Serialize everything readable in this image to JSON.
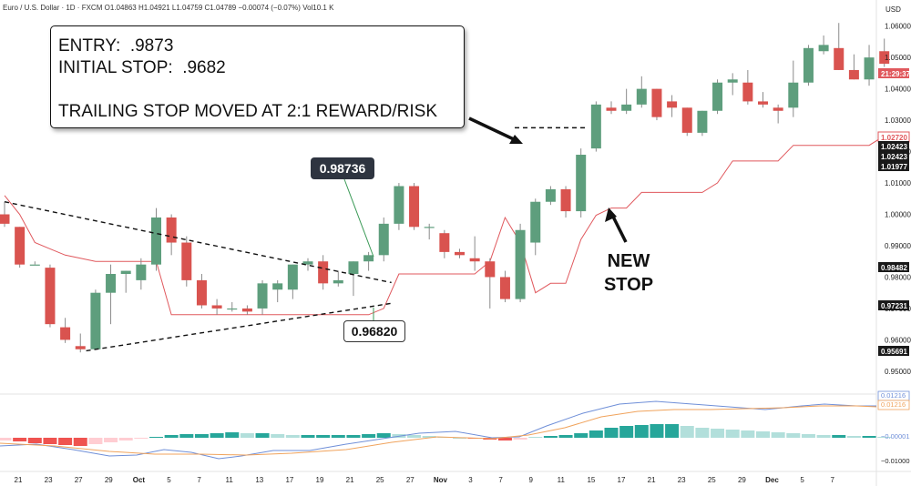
{
  "legend": {
    "symbol": "Euro / U.S. Dollar · 1D · FXCM",
    "o": "O1.04863",
    "h": "H1.04921",
    "l": "L1.04759",
    "c": "C1.04789",
    "chg": "−0.00074 (−0.07%)",
    "vol": "Vol10.1 K"
  },
  "currency": "USD",
  "annotation": {
    "entry": "ENTRY:  .9873",
    "stop": "INITIAL STOP:  .9682",
    "trailing": "TRAILING STOP MOVED AT 2:1 REWARD/RISK"
  },
  "label_high": "0.98736",
  "label_low": "0.96820",
  "new_stop": [
    "NEW",
    "STOP"
  ],
  "colors": {
    "up": "#5e9e7d",
    "down": "#d9534f",
    "stop_line": "#e0585d",
    "macd": "#6f8fd8",
    "signal": "#f0a35c"
  },
  "chart_data": {
    "type": "candlestick",
    "ylim": [
      0.943,
      1.066
    ],
    "y_ticks": [
      0.95,
      0.96,
      0.97,
      0.98,
      0.99,
      1.0,
      1.01,
      1.02,
      1.03,
      1.04,
      1.05,
      1.06
    ],
    "y_tick_labels": [
      "0.95000",
      "0.96000",
      "0.97000",
      "0.98000",
      "0.99000",
      "1.00000",
      "1.01000",
      "1.02000",
      "1.03000",
      "1.04000",
      "1.05000",
      "1.06000"
    ],
    "x_tick_labels": [
      "21",
      "23",
      "27",
      "29",
      "Oct",
      "5",
      "7",
      "11",
      "13",
      "17",
      "19",
      "21",
      "25",
      "27",
      "Nov",
      "3",
      "7",
      "9",
      "11",
      "15",
      "17",
      "21",
      "23",
      "25",
      "29",
      "Dec",
      "5",
      "7"
    ],
    "candles": [
      [
        1.0,
        1.004,
        0.996,
        0.997
      ],
      [
        0.996,
        0.996,
        0.983,
        0.984
      ],
      [
        0.984,
        0.985,
        0.984,
        0.984
      ],
      [
        0.983,
        0.984,
        0.964,
        0.965
      ],
      [
        0.964,
        0.967,
        0.959,
        0.96
      ],
      [
        0.958,
        0.962,
        0.956,
        0.957
      ],
      [
        0.957,
        0.976,
        0.957,
        0.975
      ],
      [
        0.975,
        0.984,
        0.965,
        0.981
      ],
      [
        0.981,
        0.982,
        0.975,
        0.982
      ],
      [
        0.979,
        0.986,
        0.976,
        0.984
      ],
      [
        0.984,
        1.002,
        0.982,
        0.999
      ],
      [
        0.999,
        1.0,
        0.987,
        0.991
      ],
      [
        0.991,
        0.993,
        0.977,
        0.979
      ],
      [
        0.979,
        0.981,
        0.97,
        0.971
      ],
      [
        0.971,
        0.973,
        0.968,
        0.97
      ],
      [
        0.97,
        0.972,
        0.969,
        0.97
      ],
      [
        0.97,
        0.971,
        0.968,
        0.969
      ],
      [
        0.97,
        0.979,
        0.968,
        0.978
      ],
      [
        0.976,
        0.979,
        0.972,
        0.978
      ],
      [
        0.976,
        0.984,
        0.973,
        0.984
      ],
      [
        0.984,
        0.986,
        0.982,
        0.985
      ],
      [
        0.985,
        0.987,
        0.976,
        0.978
      ],
      [
        0.978,
        0.982,
        0.977,
        0.979
      ],
      [
        0.981,
        0.985,
        0.974,
        0.985
      ],
      [
        0.985,
        0.988,
        0.982,
        0.987
      ],
      [
        0.987,
        0.999,
        0.985,
        0.997
      ],
      [
        0.997,
        1.01,
        0.995,
        1.009
      ],
      [
        1.009,
        1.01,
        0.995,
        0.996
      ],
      [
        0.996,
        0.997,
        0.992,
        0.996
      ],
      [
        0.994,
        0.995,
        0.986,
        0.988
      ],
      [
        0.988,
        0.989,
        0.986,
        0.987
      ],
      [
        0.986,
        0.993,
        0.982,
        0.985
      ],
      [
        0.985,
        0.986,
        0.97,
        0.98
      ],
      [
        0.98,
        0.982,
        0.972,
        0.973
      ],
      [
        0.973,
        0.997,
        0.972,
        0.995
      ],
      [
        0.991,
        1.005,
        0.987,
        1.004
      ],
      [
        1.004,
        1.009,
        1.003,
        1.008
      ],
      [
        1.008,
        1.009,
        0.999,
        1.001
      ],
      [
        1.001,
        1.021,
        0.999,
        1.019
      ],
      [
        1.021,
        1.036,
        1.02,
        1.035
      ],
      [
        1.034,
        1.036,
        1.032,
        1.033
      ],
      [
        1.033,
        1.04,
        1.032,
        1.035
      ],
      [
        1.035,
        1.044,
        1.034,
        1.04
      ],
      [
        1.04,
        1.04,
        1.03,
        1.031
      ],
      [
        1.036,
        1.038,
        1.031,
        1.034
      ],
      [
        1.034,
        1.034,
        1.025,
        1.026
      ],
      [
        1.026,
        1.033,
        1.025,
        1.033
      ],
      [
        1.033,
        1.043,
        1.032,
        1.042
      ],
      [
        1.042,
        1.045,
        1.038,
        1.043
      ],
      [
        1.042,
        1.046,
        1.035,
        1.036
      ],
      [
        1.036,
        1.039,
        1.034,
        1.035
      ],
      [
        1.034,
        1.035,
        1.029,
        1.033
      ],
      [
        1.034,
        1.049,
        1.031,
        1.042
      ],
      [
        1.042,
        1.054,
        1.041,
        1.053
      ],
      [
        1.052,
        1.057,
        1.051,
        1.054
      ],
      [
        1.053,
        1.061,
        1.046,
        1.046
      ],
      [
        1.046,
        1.051,
        1.043,
        1.043
      ],
      [
        1.043,
        1.054,
        1.041,
        1.05
      ],
      [
        1.052,
        1.056,
        1.047,
        1.048
      ]
    ],
    "trailing_stop": [
      1.006,
      1.0,
      0.991,
      0.989,
      0.987,
      0.986,
      0.985,
      0.985,
      0.985,
      0.985,
      0.985,
      0.968,
      0.968,
      0.968,
      0.968,
      0.968,
      0.968,
      0.968,
      0.968,
      0.968,
      0.968,
      0.968,
      0.968,
      0.968,
      0.968,
      0.97,
      0.981,
      0.981,
      0.981,
      0.981,
      0.981,
      0.981,
      0.985,
      0.999,
      0.991,
      0.975,
      0.978,
      0.978,
      0.992,
      0.9997,
      1.002,
      1.002,
      1.007,
      1.007,
      1.007,
      1.007,
      1.007,
      1.01,
      1.017,
      1.017,
      1.017,
      1.017,
      1.022,
      1.022,
      1.022,
      1.022,
      1.022,
      1.022,
      1.025
    ],
    "trend_upper": [
      [
        0.0,
        1.004
      ],
      [
        19.5,
        0.9855
      ]
    ],
    "trend_lower": [
      [
        3.7,
        0.9565
      ],
      [
        19.5,
        0.9725
      ]
    ],
    "entry_line": [
      [
        23.5,
        1.0276
      ],
      [
        28.5,
        1.0276
      ]
    ],
    "price_tags": [
      "1.02720",
      "1.02423",
      "1.02423",
      "1.01977",
      "0.98482",
      "0.97231",
      "0.95691",
      "21:29:37"
    ],
    "macd_axis_labels": [
      "0.01216",
      "0.01216",
      "−0.00001",
      "−0.01000"
    ]
  }
}
